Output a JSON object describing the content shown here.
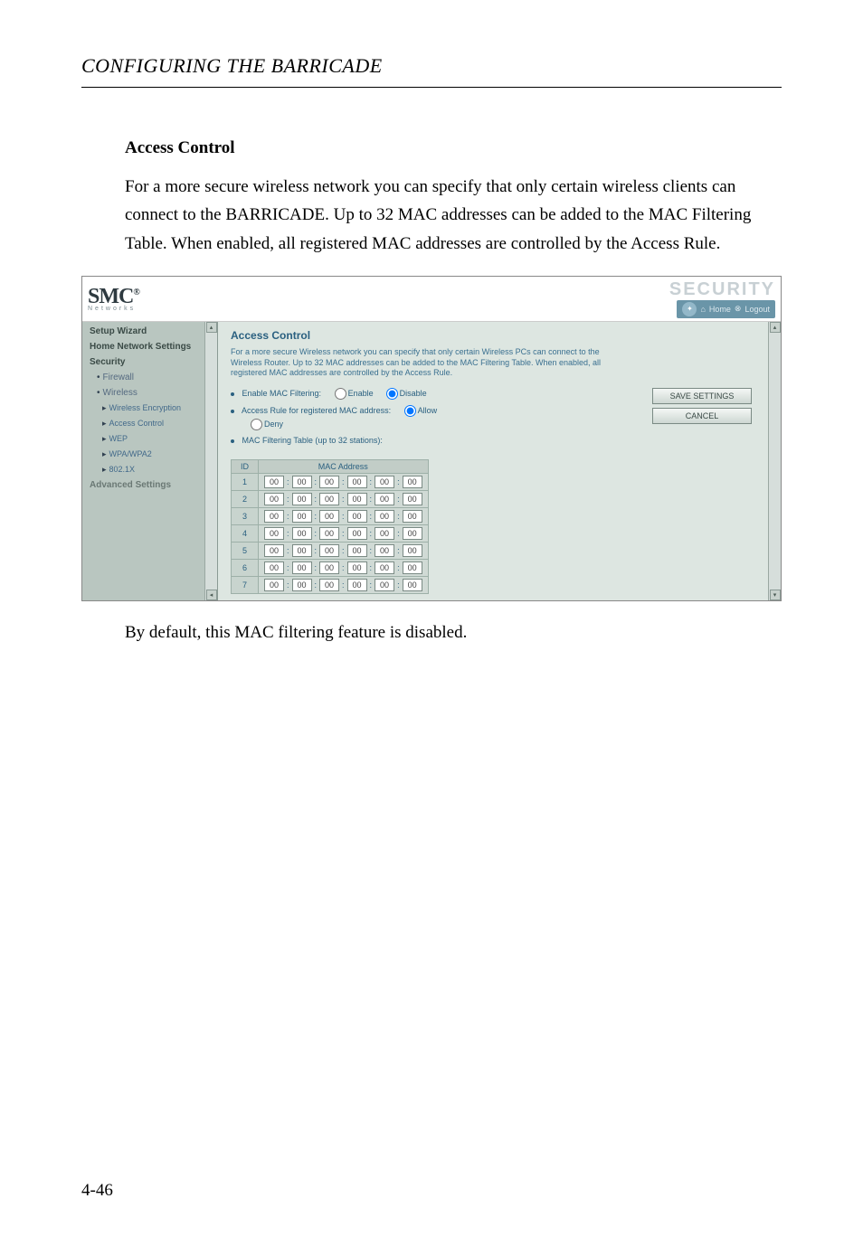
{
  "chapter": "CONFIGURING THE BARRICADE",
  "section_title": "Access Control",
  "body_para": "For a more secure wireless network you can specify that only certain wireless clients can connect to the BARRICADE. Up to 32 MAC addresses can be added to the MAC Filtering Table. When enabled, all registered MAC addresses are controlled by the Access Rule.",
  "caption": "By default, this MAC filtering feature is disabled.",
  "page_num": "4-46",
  "sh": {
    "logo": "SMC",
    "logo_sup": "®",
    "logo_sub": "Networks",
    "sec_word": "SECURITY",
    "hdr_home": "Home",
    "hdr_logout": "Logout",
    "sidebar": {
      "setup_wizard": "Setup Wizard",
      "home_net": "Home Network Settings",
      "security": "Security",
      "firewall": "Firewall",
      "wireless": "Wireless",
      "w_enc": "Wireless Encryption",
      "w_ac": "Access Control",
      "w_wep": "WEP",
      "w_wpa": "WPA/WPA2",
      "w_8021x": "802.1X",
      "advanced": "Advanced Settings"
    },
    "content": {
      "title": "Access Control",
      "desc": "For a more secure Wireless network you can specify that only certain Wireless PCs can connect to the Wireless Router. Up to 32 MAC addresses can be added to the MAC Filtering Table. When enabled, all registered MAC addresses are controlled by the Access Rule.",
      "enable_label": "Enable MAC Filtering:",
      "opt_enable": "Enable",
      "opt_disable": "Disable",
      "rule_label": "Access Rule for registered MAC address:",
      "opt_allow": "Allow",
      "opt_deny": "Deny",
      "table_label": "MAC Filtering Table (up to 32 stations):",
      "col_id": "ID",
      "col_mac": "MAC Address",
      "btn_save": "SAVE SETTINGS",
      "btn_cancel": "CANCEL",
      "rows": [
        1,
        2,
        3,
        4,
        5,
        6,
        7
      ],
      "cell": "00"
    }
  }
}
